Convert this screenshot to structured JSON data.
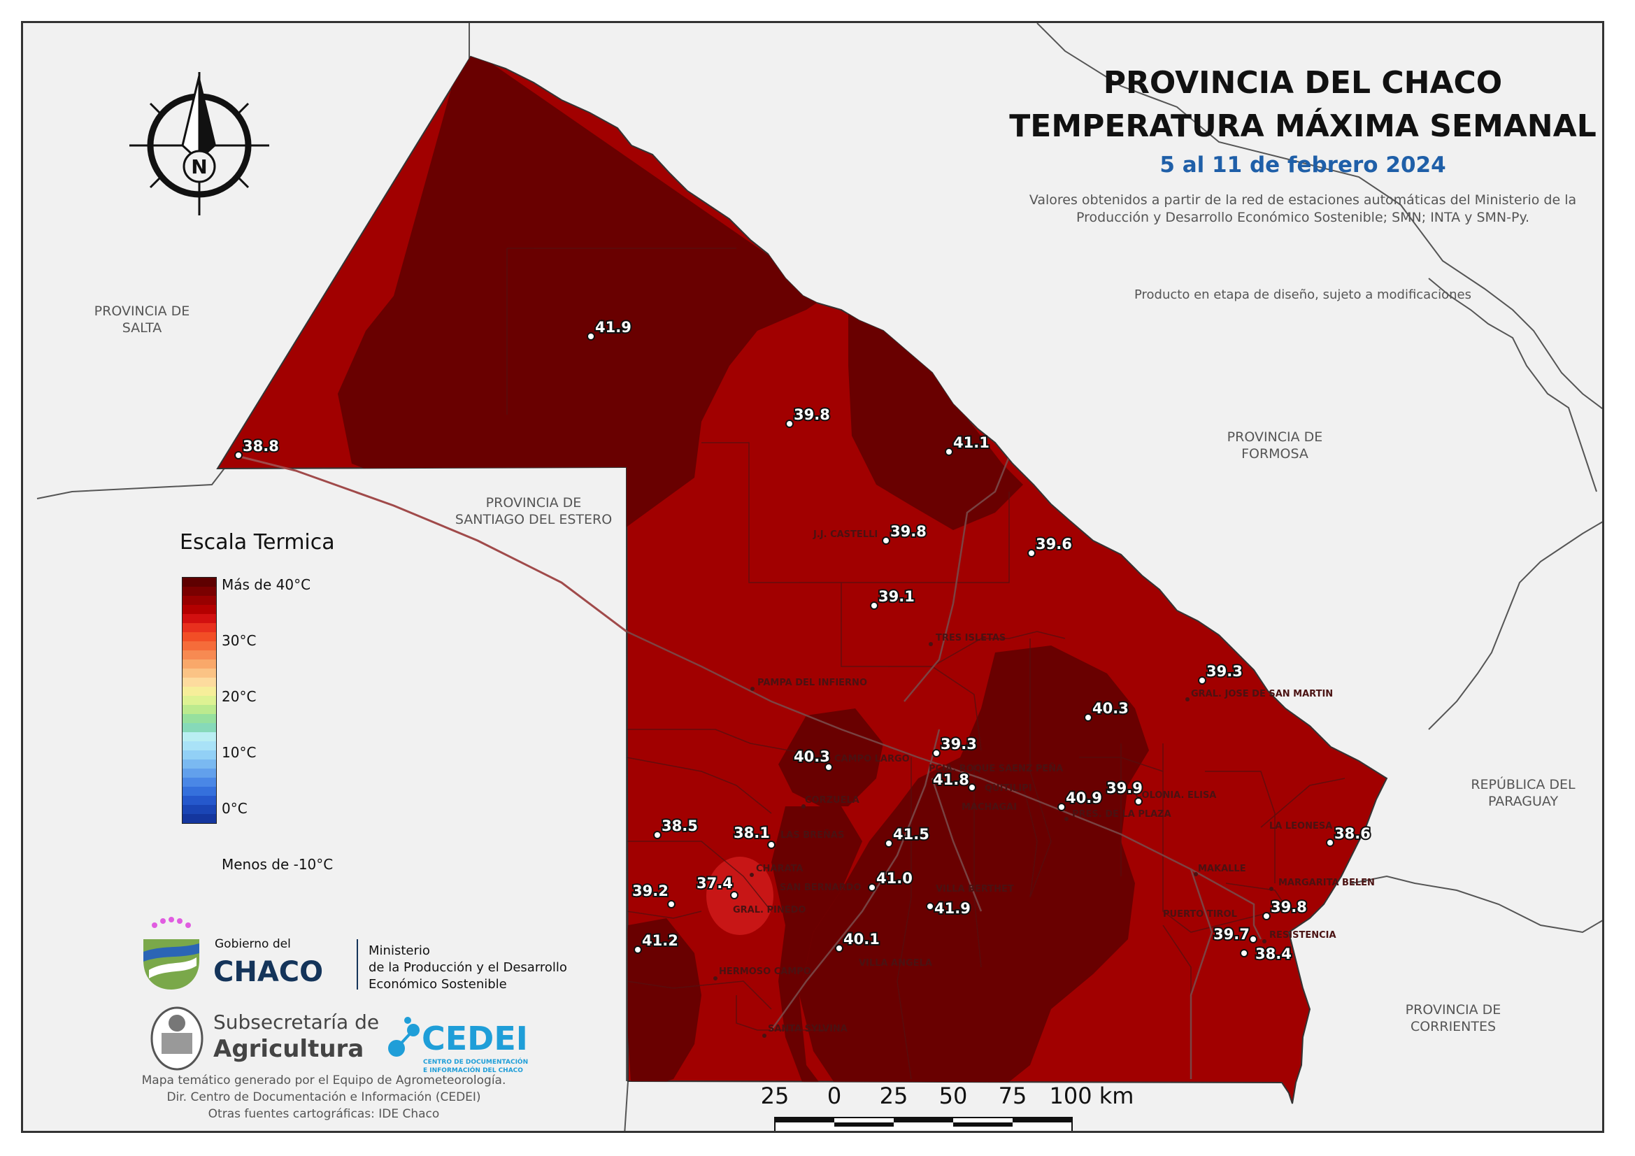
{
  "map": {
    "title_line1": "PROVINCIA DEL CHACO",
    "title_line2": "TEMPERATURA MÁXIMA SEMANAL",
    "period": "5 al 11 de febrero 2024",
    "source_note": "Valores obtenidos a partir de la red de estaciones automáticas del Ministerio de la Producción y Desarrollo Económico Sostenible; SMN; INTA y SMN-Py.",
    "design_note": "Producto en etapa de diseño, sujeto a modificaciones",
    "north_label": "N"
  },
  "regions": {
    "salta_1": "PROVINCIA DE",
    "salta_2": "SALTA",
    "formosa_1": "PROVINCIA DE",
    "formosa_2": "FORMOSA",
    "santiago_1": "PROVINCIA DE",
    "santiago_2": "SANTIAGO DEL ESTERO",
    "paraguay_1": "REPÚBLICA DEL",
    "paraguay_2": "PARAGUAY",
    "corrientes_1": "PROVINCIA DE",
    "corrientes_2": "CORRIENTES"
  },
  "legend": {
    "title": "Escala Termica",
    "labels": [
      "Más de 40°C",
      "30°C",
      "20°C",
      "10°C",
      "0°C",
      "Menos de -10°C"
    ],
    "colors": [
      "#5e0000",
      "#7a0000",
      "#980000",
      "#b40000",
      "#d21010",
      "#e8301e",
      "#f24e26",
      "#f56c3a",
      "#f78a52",
      "#f9a86a",
      "#fbc385",
      "#fddb9e",
      "#f6ee9a",
      "#def293",
      "#bcea8e",
      "#96e09e",
      "#86d9b9",
      "#b9eef2",
      "#a9e2f7",
      "#92d0f6",
      "#7ab9f1",
      "#62a0ec",
      "#4a87e6",
      "#3570dc",
      "#2558cc",
      "#1a45b5",
      "#14369e"
    ]
  },
  "stations": [
    {
      "value": "41.9"
    },
    {
      "value": "38.8"
    },
    {
      "value": "39.8"
    },
    {
      "value": "41.1"
    },
    {
      "value": "39.8"
    },
    {
      "value": "39.6"
    },
    {
      "value": "39.1"
    },
    {
      "value": "39.3"
    },
    {
      "value": "40.3"
    },
    {
      "value": "40.3"
    },
    {
      "value": "39.3"
    },
    {
      "value": "41.8"
    },
    {
      "value": "40.9"
    },
    {
      "value": "39.9"
    },
    {
      "value": "38.5"
    },
    {
      "value": "38.1"
    },
    {
      "value": "41.5"
    },
    {
      "value": "38.6"
    },
    {
      "value": "37.4"
    },
    {
      "value": "39.2"
    },
    {
      "value": "41.0"
    },
    {
      "value": "41.9"
    },
    {
      "value": "39.8"
    },
    {
      "value": "41.2"
    },
    {
      "value": "40.1"
    },
    {
      "value": "39.7"
    },
    {
      "value": "38.4"
    }
  ],
  "towns": [
    "J.J. CASTELLI",
    "TRES ISLETAS",
    "PAMPA DEL INFIERNO",
    "GRAL. JOSE DE SAN MARTIN",
    "CAMPO LARGO",
    "PCIA. ROQUE SAENZ PEÑA",
    "QUITILIPI",
    "MACHAGAI",
    "CORZUELA",
    "PRES. DE LA PLAZA",
    "COLONIA. ELISA",
    "LAS BREÑAS",
    "LA LEONESA",
    "CHARATA",
    "MAKALLE",
    "MARGARITA BELEN",
    "SAN BERNARDO",
    "VILLA BERTHET",
    "GRAL. PINEDO",
    "PUERTO TIROL",
    "RESISTENCIA",
    "HERMOSO CAMPO",
    "VILLA ANGELA",
    "SANTA SYLVINA"
  ],
  "scale": {
    "ticks": [
      "25",
      "0",
      "25",
      "50",
      "75",
      "100 km"
    ]
  },
  "logos": {
    "gobierno_small": "Gobierno del",
    "gobierno_big": "CHACO",
    "ministerio_1": "Ministerio",
    "ministerio_2": "de la Producción y el Desarrollo",
    "ministerio_3": "Económico Sostenible",
    "subsecretaria_1": "Subsecretaría de",
    "subsecretaria_2": "Agricultura",
    "cedei": "CEDEI",
    "cedei_sub_1": "CENTRO DE DOCUMENTACIÓN",
    "cedei_sub_2": "E INFORMACIÓN DEL CHACO"
  },
  "footer": {
    "line1": "Mapa temático generado por el Equipo de Agrometeorología.",
    "line2": "Dir. Centro de Documentación e Información (CEDEI)",
    "line3": "Otras fuentes cartográficas: IDE Chaco"
  }
}
